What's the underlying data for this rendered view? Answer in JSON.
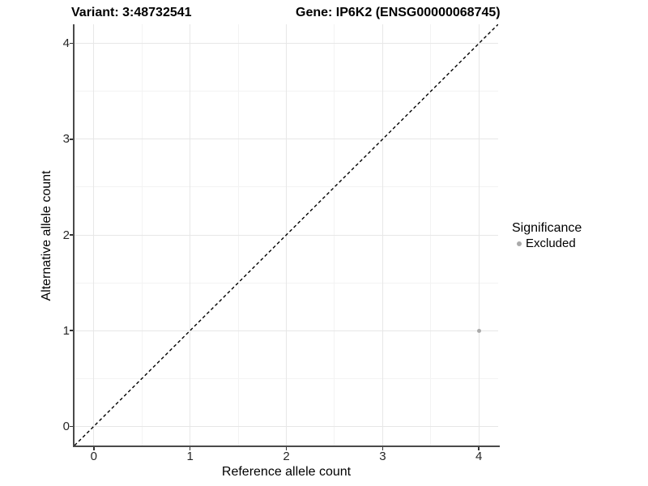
{
  "chart_data": {
    "type": "scatter",
    "titles": {
      "left": "Variant: 3:48732541",
      "right": "Gene: IP6K2 (ENSG00000068745)"
    },
    "xlabel": "Reference allele count",
    "ylabel": "Alternative allele count",
    "xlim": [
      -0.2,
      4.2
    ],
    "ylim": [
      -0.2,
      4.2
    ],
    "x_ticks": [
      0,
      1,
      2,
      3,
      4
    ],
    "y_ticks": [
      0,
      1,
      2,
      3,
      4
    ],
    "x_minor_ticks": [
      0.5,
      1.5,
      2.5,
      3.5
    ],
    "y_minor_ticks": [
      0.5,
      1.5,
      2.5,
      3.5
    ],
    "grid": {
      "major_color": "#e7e7e7",
      "minor_color": "#f3f3f3"
    },
    "reference_line": {
      "slope": 1,
      "intercept": 0,
      "style": "dashed",
      "color": "#000000"
    },
    "series": [
      {
        "name": "Excluded",
        "color": "#aaaaaa",
        "marker_size": 5,
        "points": [
          {
            "x": 4,
            "y": 1
          }
        ]
      }
    ],
    "legend": {
      "title": "Significance",
      "position": "right",
      "items": [
        {
          "label": "Excluded",
          "color": "#aaaaaa",
          "marker": "circle"
        }
      ]
    }
  },
  "colors": {
    "background": "#ffffff",
    "axis_line": "#4a4a4a",
    "tick_mark": "#333333",
    "tick_label": "#262626"
  }
}
